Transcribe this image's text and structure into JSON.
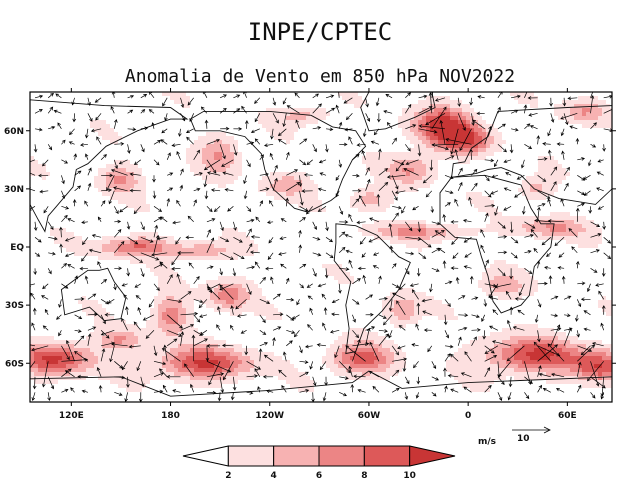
{
  "header": {
    "agency": "INPE/CPTEC",
    "title": "Anomalia de Vento em 850 hPa NOV2022"
  },
  "chart_data": {
    "type": "heatmap",
    "title": "Anomalia de Vento em 850 hPa NOV2022",
    "subtitle": "INPE/CPTEC",
    "xlabel": "",
    "ylabel": "",
    "x_ticks": [
      "120E",
      "180",
      "120W",
      "60W",
      "0",
      "60E"
    ],
    "x_tick_values": [
      120,
      180,
      240,
      300,
      360,
      420
    ],
    "xlim": [
      95,
      447
    ],
    "y_ticks": [
      "60N",
      "30N",
      "EQ",
      "30S",
      "60S"
    ],
    "y_tick_values": [
      60,
      30,
      0,
      -30,
      -60
    ],
    "ylim": [
      -80,
      80
    ],
    "grid": false,
    "colorbar": {
      "levels": [
        2,
        4,
        6,
        8,
        10
      ],
      "labels": [
        "2",
        "4",
        "6",
        "8",
        "10"
      ],
      "colors": [
        "#ffffff",
        "#fde0e0",
        "#f7b2b2",
        "#ec8585",
        "#dd5959",
        "#c83535"
      ],
      "placement": "bottom"
    },
    "reference_vector": {
      "unit": "m/s",
      "value": 10
    },
    "colors": {
      "land_outline": "#111111",
      "arrow": "#000000"
    }
  }
}
